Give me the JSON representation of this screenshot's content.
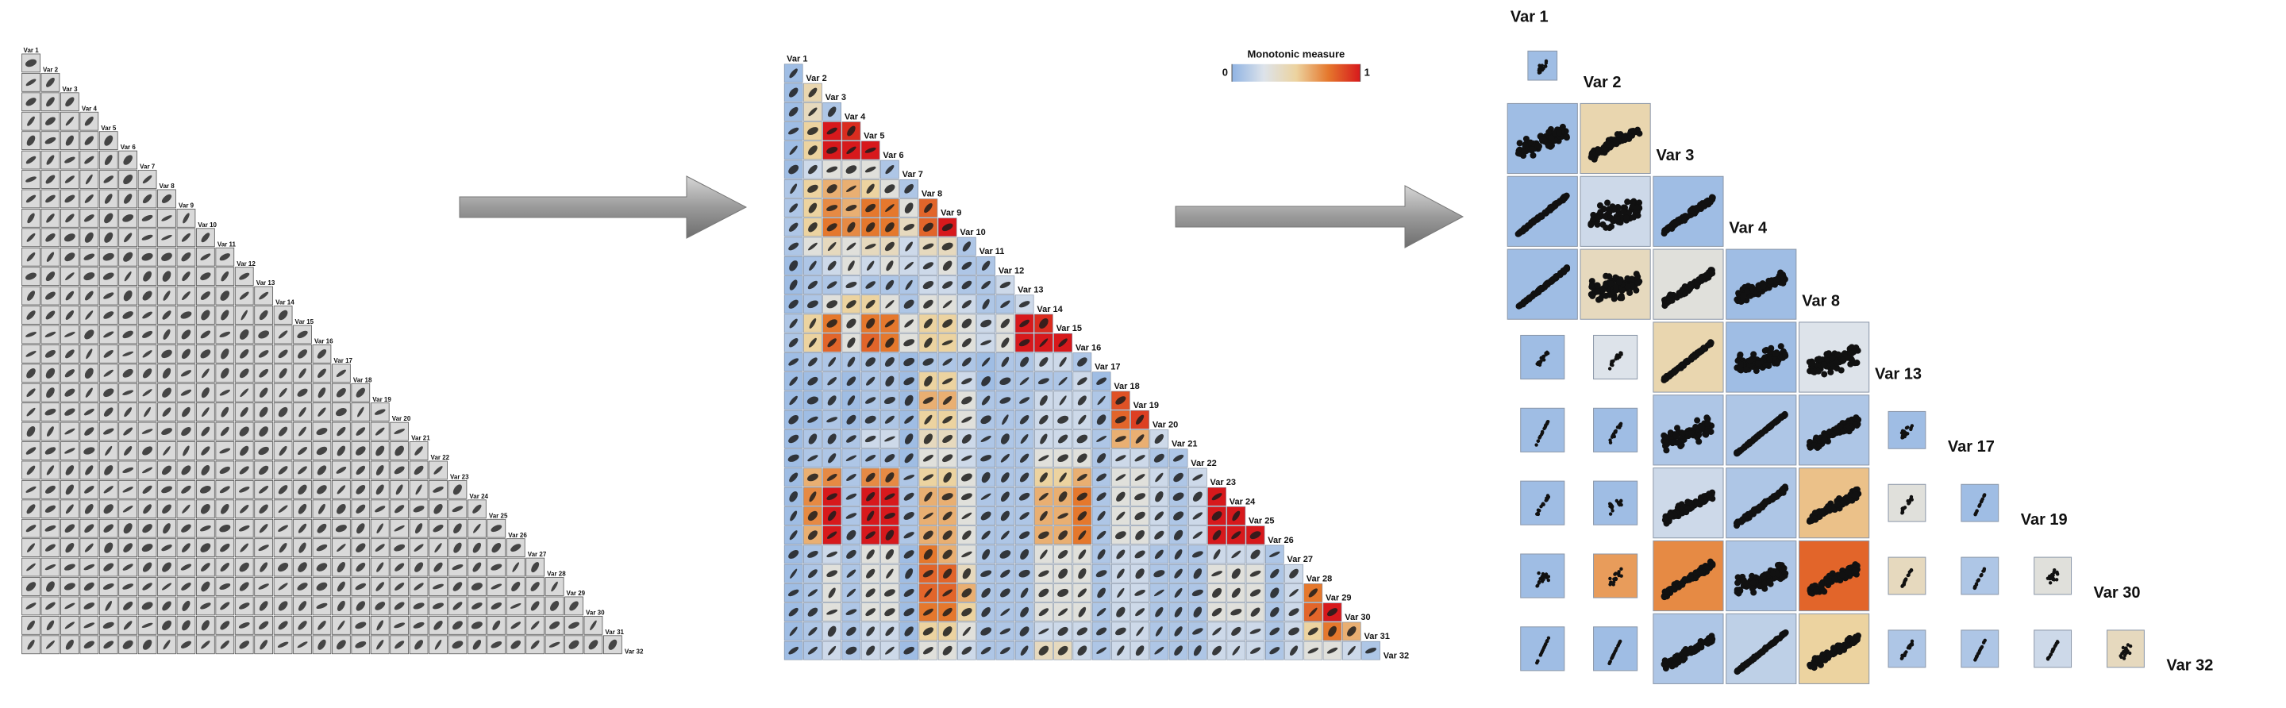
{
  "panels": [
    {
      "type": "scatter-matrix",
      "labels": [
        "Var 1",
        "Var 2",
        "Var 3",
        "Var 4",
        "Var 5",
        "Var 6",
        "Var 7",
        "Var 8",
        "Var 9",
        "Var 10",
        "Var 11",
        "Var 12",
        "Var 13",
        "Var 14",
        "Var 15",
        "Var 16",
        "Var 17",
        "Var 18",
        "Var 19",
        "Var 20",
        "Var 21",
        "Var 22",
        "Var 23",
        "Var 24",
        "Var 25",
        "Var 26",
        "Var 27",
        "Var 28",
        "Var 29",
        "Var 30",
        "Var 31",
        "Var 32"
      ],
      "cell_color": "#d9d9d9"
    },
    {
      "type": "scatter-matrix",
      "labels": [
        "Var 1",
        "Var 2",
        "Var 3",
        "Var 4",
        "Var 5",
        "Var 6",
        "Var 7",
        "Var 8",
        "Var 9",
        "Var 10",
        "Var 11",
        "Var 12",
        "Var 13",
        "Var 14",
        "Var 15",
        "Var 16",
        "Var 17",
        "Var 18",
        "Var 19",
        "Var 20",
        "Var 21",
        "Var 22",
        "Var 23",
        "Var 24",
        "Var 25",
        "Var 26",
        "Var 27",
        "Var 28",
        "Var 29",
        "Var 30",
        "Var 31",
        "Var 32"
      ],
      "legend": {
        "title": "Monotonic measure",
        "ticks": [
          0,
          1
        ]
      },
      "measure": [
        [
          0.05
        ],
        [
          0.05,
          0.45
        ],
        [
          0.05,
          0.4,
          0.1
        ],
        [
          0.05,
          0.5,
          1,
          0.95
        ],
        [
          0.05,
          0.5,
          1,
          1,
          1
        ],
        [
          0.05,
          0.2,
          0.3,
          0.3,
          0.3,
          0.1
        ],
        [
          0.1,
          0.5,
          0.6,
          0.6,
          0.5,
          0.3,
          0.1
        ],
        [
          0.1,
          0.5,
          0.7,
          0.6,
          0.75,
          0.75,
          0.3,
          0.8
        ],
        [
          0.1,
          0.5,
          0.75,
          0.7,
          0.75,
          0.75,
          0.4,
          0.8,
          1
        ],
        [
          0.1,
          0.3,
          0.4,
          0.3,
          0.4,
          0.4,
          0.2,
          0.4,
          0.4,
          0.1
        ],
        [
          0.05,
          0.1,
          0.2,
          0.3,
          0.2,
          0.3,
          0.2,
          0.2,
          0.3,
          0.1,
          0.1
        ],
        [
          0.05,
          0.1,
          0.1,
          0.2,
          0.1,
          0.1,
          0.1,
          0.2,
          0.2,
          0.1,
          0.1,
          0.2
        ],
        [
          0.05,
          0.1,
          0.3,
          0.5,
          0.5,
          0.3,
          0.1,
          0.3,
          0.3,
          0.2,
          0.1,
          0.1,
          0.2
        ],
        [
          0.1,
          0.5,
          0.75,
          0.3,
          0.75,
          0.75,
          0.3,
          0.5,
          0.5,
          0.3,
          0.2,
          0.3,
          1,
          0.95
        ],
        [
          0.1,
          0.5,
          0.8,
          0.3,
          0.8,
          0.75,
          0.3,
          0.5,
          0.5,
          0.3,
          0.2,
          0.3,
          1,
          1,
          1
        ],
        [
          0.05,
          0.1,
          0.1,
          0.1,
          0.1,
          0.1,
          0.05,
          0.1,
          0.1,
          0.1,
          0.05,
          0.1,
          0.1,
          0.2,
          0.2,
          0.1
        ],
        [
          0.05,
          0.05,
          0.1,
          0.05,
          0.1,
          0.1,
          0.05,
          0.5,
          0.5,
          0.2,
          0.05,
          0.1,
          0.1,
          0.1,
          0.1,
          0.2,
          0.05
        ],
        [
          0.05,
          0.05,
          0.1,
          0.05,
          0.1,
          0.1,
          0.05,
          0.6,
          0.6,
          0.3,
          0.1,
          0.1,
          0.1,
          0.2,
          0.2,
          0.2,
          0.1,
          0.85
        ],
        [
          0.05,
          0.05,
          0.1,
          0.05,
          0.1,
          0.1,
          0.05,
          0.5,
          0.5,
          0.3,
          0.1,
          0.1,
          0.1,
          0.2,
          0.2,
          0.2,
          0.1,
          0.8,
          0.9
        ],
        [
          0.05,
          0.1,
          0.1,
          0.1,
          0.2,
          0.2,
          0.05,
          0.4,
          0.4,
          0.2,
          0.1,
          0.1,
          0.1,
          0.2,
          0.2,
          0.2,
          0.1,
          0.6,
          0.6,
          0.2
        ],
        [
          0.05,
          0.1,
          0.1,
          0.1,
          0.1,
          0.1,
          0.05,
          0.3,
          0.3,
          0.2,
          0.1,
          0.1,
          0.1,
          0.3,
          0.3,
          0.3,
          0.1,
          0.2,
          0.2,
          0.1,
          0.1
        ],
        [
          0.05,
          0.6,
          0.7,
          0.1,
          0.7,
          0.7,
          0.1,
          0.5,
          0.5,
          0.3,
          0.1,
          0.1,
          0.1,
          0.5,
          0.5,
          0.6,
          0.1,
          0.3,
          0.3,
          0.2,
          0.1,
          0.2
        ],
        [
          0.05,
          0.7,
          1,
          0.1,
          1,
          1,
          0.1,
          0.6,
          0.6,
          0.3,
          0.1,
          0.1,
          0.1,
          0.6,
          0.6,
          0.75,
          0.1,
          0.3,
          0.3,
          0.2,
          0.1,
          0.2,
          1
        ],
        [
          0.05,
          0.7,
          1,
          0.1,
          1,
          1,
          0.1,
          0.6,
          0.6,
          0.3,
          0.1,
          0.1,
          0.1,
          0.6,
          0.6,
          0.75,
          0.1,
          0.3,
          0.3,
          0.2,
          0.1,
          0.2,
          1,
          1
        ],
        [
          0.05,
          0.6,
          1,
          0.1,
          1,
          1,
          0.1,
          0.6,
          0.6,
          0.3,
          0.1,
          0.1,
          0.1,
          0.6,
          0.6,
          0.75,
          0.1,
          0.3,
          0.3,
          0.2,
          0.1,
          0.2,
          1,
          1,
          1
        ],
        [
          0.05,
          0.1,
          0.2,
          0.1,
          0.3,
          0.3,
          0.05,
          0.75,
          0.6,
          0.3,
          0.1,
          0.1,
          0.1,
          0.3,
          0.3,
          0.3,
          0.1,
          0.2,
          0.2,
          0.1,
          0.1,
          0.1,
          0.2,
          0.2,
          0.2,
          0.1
        ],
        [
          0.05,
          0.1,
          0.3,
          0.1,
          0.3,
          0.3,
          0.05,
          0.8,
          0.8,
          0.4,
          0.1,
          0.1,
          0.1,
          0.3,
          0.3,
          0.3,
          0.1,
          0.2,
          0.2,
          0.1,
          0.1,
          0.1,
          0.3,
          0.3,
          0.3,
          0.1,
          0.2
        ],
        [
          0.05,
          0.1,
          0.3,
          0.1,
          0.3,
          0.3,
          0.05,
          0.8,
          0.8,
          0.6,
          0.1,
          0.1,
          0.1,
          0.3,
          0.3,
          0.3,
          0.1,
          0.2,
          0.2,
          0.1,
          0.1,
          0.1,
          0.3,
          0.3,
          0.3,
          0.1,
          0.2,
          0.75
        ],
        [
          0.05,
          0.1,
          0.3,
          0.1,
          0.3,
          0.3,
          0.05,
          0.75,
          0.75,
          0.5,
          0.1,
          0.1,
          0.1,
          0.3,
          0.3,
          0.3,
          0.1,
          0.2,
          0.2,
          0.1,
          0.1,
          0.1,
          0.3,
          0.3,
          0.3,
          0.1,
          0.2,
          0.8,
          1
        ],
        [
          0.05,
          0.1,
          0.2,
          0.1,
          0.2,
          0.2,
          0.05,
          0.5,
          0.5,
          0.3,
          0.1,
          0.1,
          0.1,
          0.2,
          0.2,
          0.2,
          0.1,
          0.2,
          0.2,
          0.1,
          0.1,
          0.1,
          0.2,
          0.2,
          0.2,
          0.1,
          0.2,
          0.5,
          0.75,
          0.6
        ],
        [
          0.05,
          0.1,
          0.2,
          0.1,
          0.2,
          0.2,
          0.05,
          0.3,
          0.3,
          0.2,
          0.1,
          0.1,
          0.1,
          0.4,
          0.4,
          0.2,
          0.1,
          0.2,
          0.2,
          0.1,
          0.1,
          0.1,
          0.2,
          0.2,
          0.2,
          0.1,
          0.2,
          0.3,
          0.3,
          0.2,
          0.1
        ]
      ]
    },
    {
      "type": "scatter-matrix",
      "labels": [
        "Var 1",
        "Var 2",
        "Var 3",
        "Var 4",
        "Var 8",
        "Var 13",
        "Var 17",
        "Var 19",
        "Var 30",
        "Var 32"
      ],
      "focus_vars": [
        2,
        3,
        4
      ],
      "measure": [
        [
          0.05
        ],
        [
          0.05,
          0.45
        ],
        [
          0.05,
          0.2,
          0.05
        ],
        [
          0.05,
          0.4,
          0.3,
          0.05
        ],
        [
          0.05,
          0.25,
          0.45,
          0.05,
          0.25
        ],
        [
          0.05,
          0.05,
          0.1,
          0.1,
          0.1,
          0.05
        ],
        [
          0.05,
          0.05,
          0.2,
          0.1,
          0.55,
          0.3,
          0.05
        ],
        [
          0.05,
          0.65,
          0.7,
          0.1,
          0.8,
          0.4,
          0.1,
          0.3
        ],
        [
          0.05,
          0.05,
          0.1,
          0.15,
          0.5,
          0.1,
          0.1,
          0.2,
          0.4
        ]
      ]
    }
  ],
  "colormap": [
    "#8fb3e3",
    "#dde3ea",
    "#ecd3a0",
    "#e5782d",
    "#d7191c"
  ]
}
